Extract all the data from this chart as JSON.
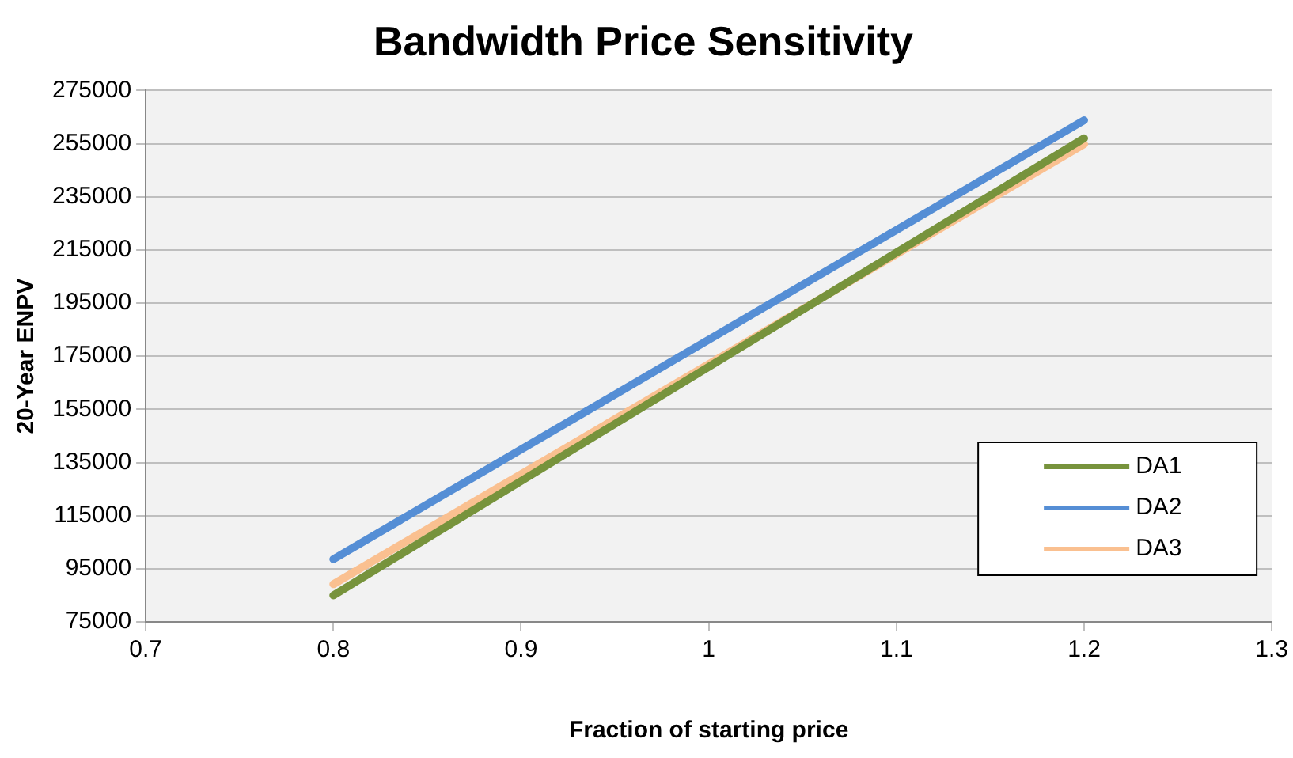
{
  "chart_data": {
    "type": "line",
    "title": "Bandwidth Price Sensitivity",
    "xlabel": "Fraction of starting price",
    "ylabel": "20-Year ENPV",
    "x": [
      0.8,
      1.2
    ],
    "series": [
      {
        "name": "DA1",
        "color": "#77933c",
        "values": [
          85000,
          257000
        ]
      },
      {
        "name": "DA2",
        "color": "#558ed5",
        "values": [
          98600,
          263800
        ]
      },
      {
        "name": "DA3",
        "color": "#fac090",
        "values": [
          89200,
          254800
        ]
      }
    ],
    "xlim": [
      0.7,
      1.3
    ],
    "xticks": [
      0.7,
      0.8,
      0.9,
      1,
      1.1,
      1.2,
      1.3
    ],
    "ylim": [
      75000,
      275000
    ],
    "yticks": [
      75000,
      95000,
      115000,
      135000,
      155000,
      175000,
      195000,
      215000,
      235000,
      255000,
      275000
    ],
    "grid": "y",
    "legend": "bottom right",
    "marker": "none",
    "line_style": "solid"
  }
}
